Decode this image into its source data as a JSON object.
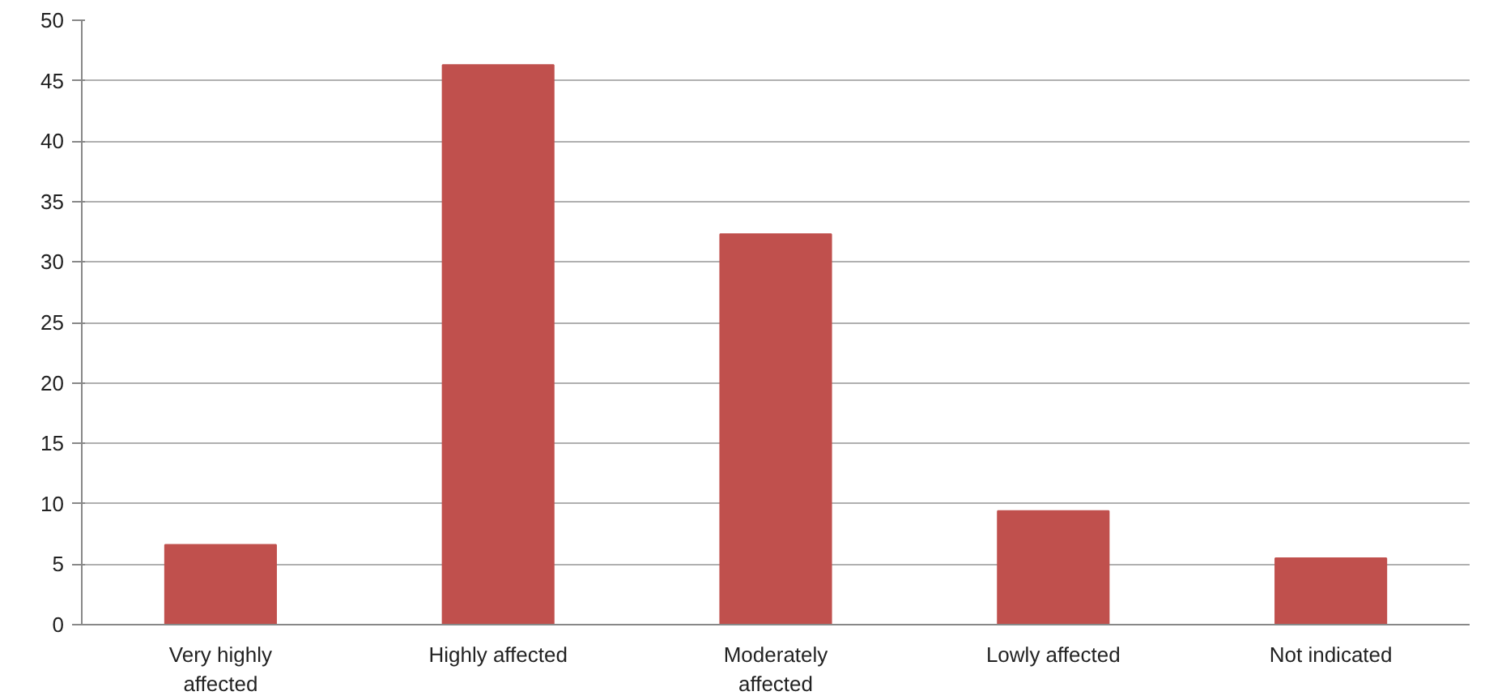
{
  "chart_data": {
    "type": "bar",
    "categories": [
      "Very highly affected",
      "Highly affected",
      "Moderately affected",
      "Lowly affected",
      "Not indicated"
    ],
    "values": [
      6.6,
      46.3,
      32.3,
      9.4,
      5.5
    ],
    "color": "#c0504d",
    "ylim": [
      0,
      50
    ],
    "yticks": [
      0,
      5,
      10,
      15,
      20,
      25,
      30,
      35,
      40,
      45,
      50
    ],
    "grid": "y"
  }
}
